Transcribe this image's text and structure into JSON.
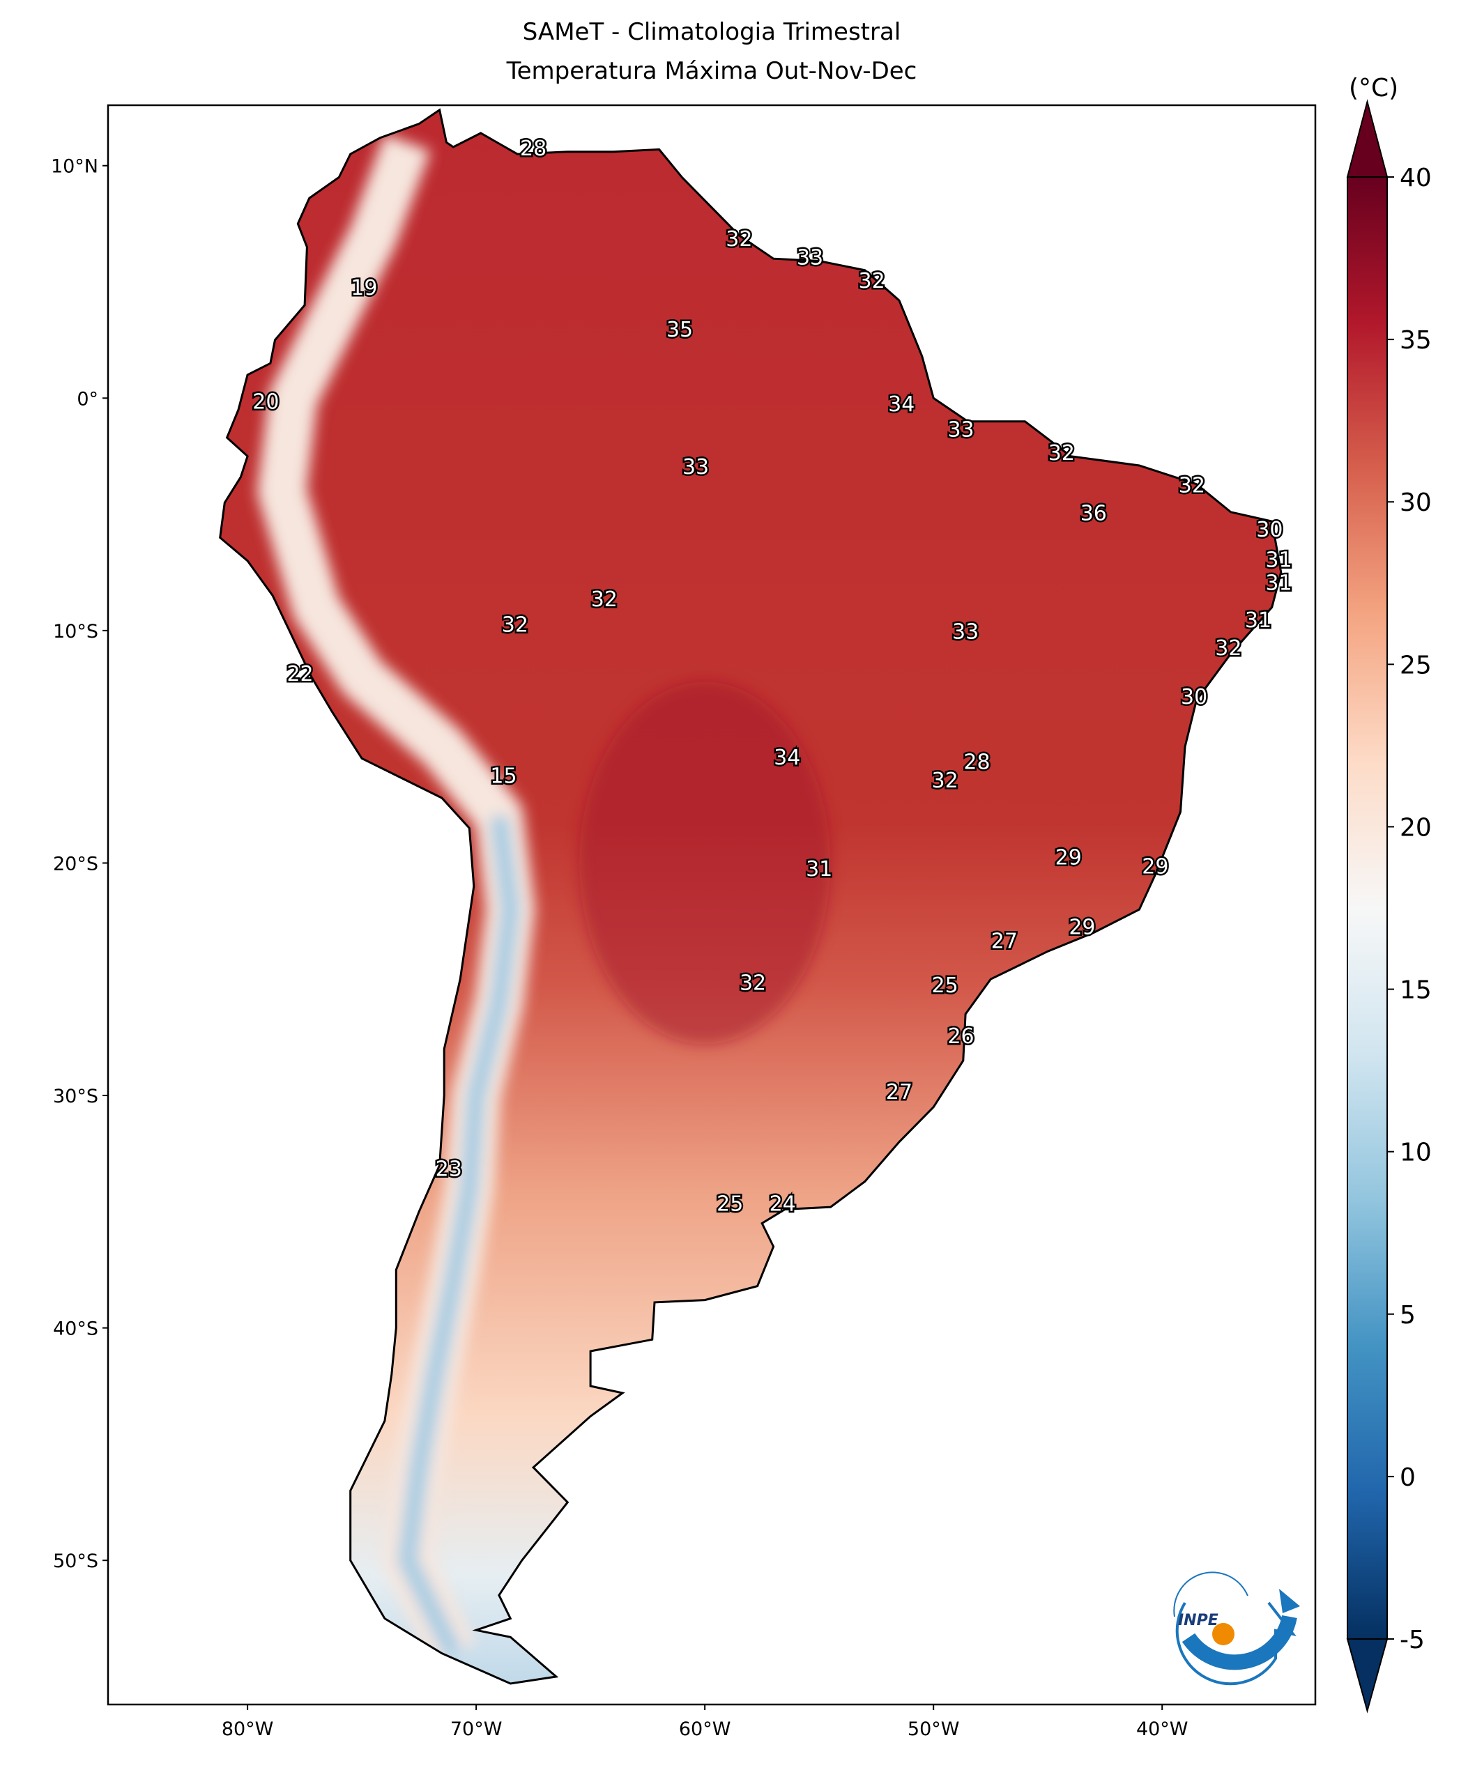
{
  "title": {
    "line1": "SAMeT - Climatologia Trimestral",
    "line2": "Temperatura Máxima   Out-Nov-Dec"
  },
  "colorbar": {
    "unit": "(°C)",
    "ticks": [
      "40",
      "35",
      "30",
      "25",
      "20",
      "15",
      "10",
      "5",
      "0",
      "-5"
    ],
    "range": [
      -5,
      40
    ],
    "colors": [
      "#053061",
      "#2166ac",
      "#4393c3",
      "#92c5de",
      "#d1e5f0",
      "#f7f7f7",
      "#fddbc7",
      "#f4a582",
      "#d6604d",
      "#b2182b",
      "#67001f"
    ]
  },
  "axes": {
    "lon_ticks": [
      {
        "v": -80,
        "label": "80°W"
      },
      {
        "v": -70,
        "label": "70°W"
      },
      {
        "v": -60,
        "label": "60°W"
      },
      {
        "v": -50,
        "label": "50°W"
      },
      {
        "v": -40,
        "label": "40°W"
      }
    ],
    "lat_ticks": [
      {
        "v": 10,
        "label": "10°N"
      },
      {
        "v": 0,
        "label": "0°"
      },
      {
        "v": -10,
        "label": "10°S"
      },
      {
        "v": -20,
        "label": "20°S"
      },
      {
        "v": -30,
        "label": "30°S"
      },
      {
        "v": -40,
        "label": "40°S"
      },
      {
        "v": -50,
        "label": "50°S"
      }
    ],
    "lon_range": [
      -86.1,
      -33.3
    ],
    "lat_range": [
      -56.2,
      12.6
    ]
  },
  "contour_labels": [
    {
      "v": "28",
      "lon": -67.5,
      "lat": 10.7
    },
    {
      "v": "32",
      "lon": -58.5,
      "lat": 6.8
    },
    {
      "v": "33",
      "lon": -55.4,
      "lat": 6.0
    },
    {
      "v": "32",
      "lon": -52.7,
      "lat": 5.0
    },
    {
      "v": "19",
      "lon": -74.9,
      "lat": 4.7
    },
    {
      "v": "35",
      "lon": -61.1,
      "lat": 2.9
    },
    {
      "v": "20",
      "lon": -79.2,
      "lat": -0.2
    },
    {
      "v": "34",
      "lon": -51.4,
      "lat": -0.3
    },
    {
      "v": "33",
      "lon": -48.8,
      "lat": -1.4
    },
    {
      "v": "32",
      "lon": -44.4,
      "lat": -2.4
    },
    {
      "v": "33",
      "lon": -60.4,
      "lat": -3.0
    },
    {
      "v": "32",
      "lon": -38.7,
      "lat": -3.8
    },
    {
      "v": "36",
      "lon": -43.0,
      "lat": -5.0
    },
    {
      "v": "30",
      "lon": -35.3,
      "lat": -5.7
    },
    {
      "v": "31",
      "lon": -34.9,
      "lat": -7.0
    },
    {
      "v": "31",
      "lon": -34.9,
      "lat": -8.0
    },
    {
      "v": "31",
      "lon": -35.8,
      "lat": -9.6
    },
    {
      "v": "32",
      "lon": -37.1,
      "lat": -10.8
    },
    {
      "v": "32",
      "lon": -64.4,
      "lat": -8.7
    },
    {
      "v": "32",
      "lon": -68.3,
      "lat": -9.8
    },
    {
      "v": "33",
      "lon": -48.6,
      "lat": -10.1
    },
    {
      "v": "22",
      "lon": -77.7,
      "lat": -11.9
    },
    {
      "v": "30",
      "lon": -38.6,
      "lat": -12.9
    },
    {
      "v": "34",
      "lon": -56.4,
      "lat": -15.5
    },
    {
      "v": "28",
      "lon": -48.1,
      "lat": -15.7
    },
    {
      "v": "32",
      "lon": -49.5,
      "lat": -16.5
    },
    {
      "v": "15",
      "lon": -68.8,
      "lat": -16.3
    },
    {
      "v": "29",
      "lon": -44.1,
      "lat": -19.8
    },
    {
      "v": "29",
      "lon": -40.3,
      "lat": -20.2
    },
    {
      "v": "31",
      "lon": -55.0,
      "lat": -20.3
    },
    {
      "v": "27",
      "lon": -46.9,
      "lat": -23.4
    },
    {
      "v": "29",
      "lon": -43.5,
      "lat": -22.8
    },
    {
      "v": "32",
      "lon": -57.9,
      "lat": -25.2
    },
    {
      "v": "25",
      "lon": -49.5,
      "lat": -25.3
    },
    {
      "v": "26",
      "lon": -48.8,
      "lat": -27.5
    },
    {
      "v": "27",
      "lon": -51.5,
      "lat": -29.9
    },
    {
      "v": "23",
      "lon": -71.2,
      "lat": -33.2
    },
    {
      "v": "25",
      "lon": -58.9,
      "lat": -34.7
    },
    {
      "v": "24",
      "lon": -56.6,
      "lat": -34.7
    }
  ],
  "logo": {
    "text": "INPE"
  }
}
